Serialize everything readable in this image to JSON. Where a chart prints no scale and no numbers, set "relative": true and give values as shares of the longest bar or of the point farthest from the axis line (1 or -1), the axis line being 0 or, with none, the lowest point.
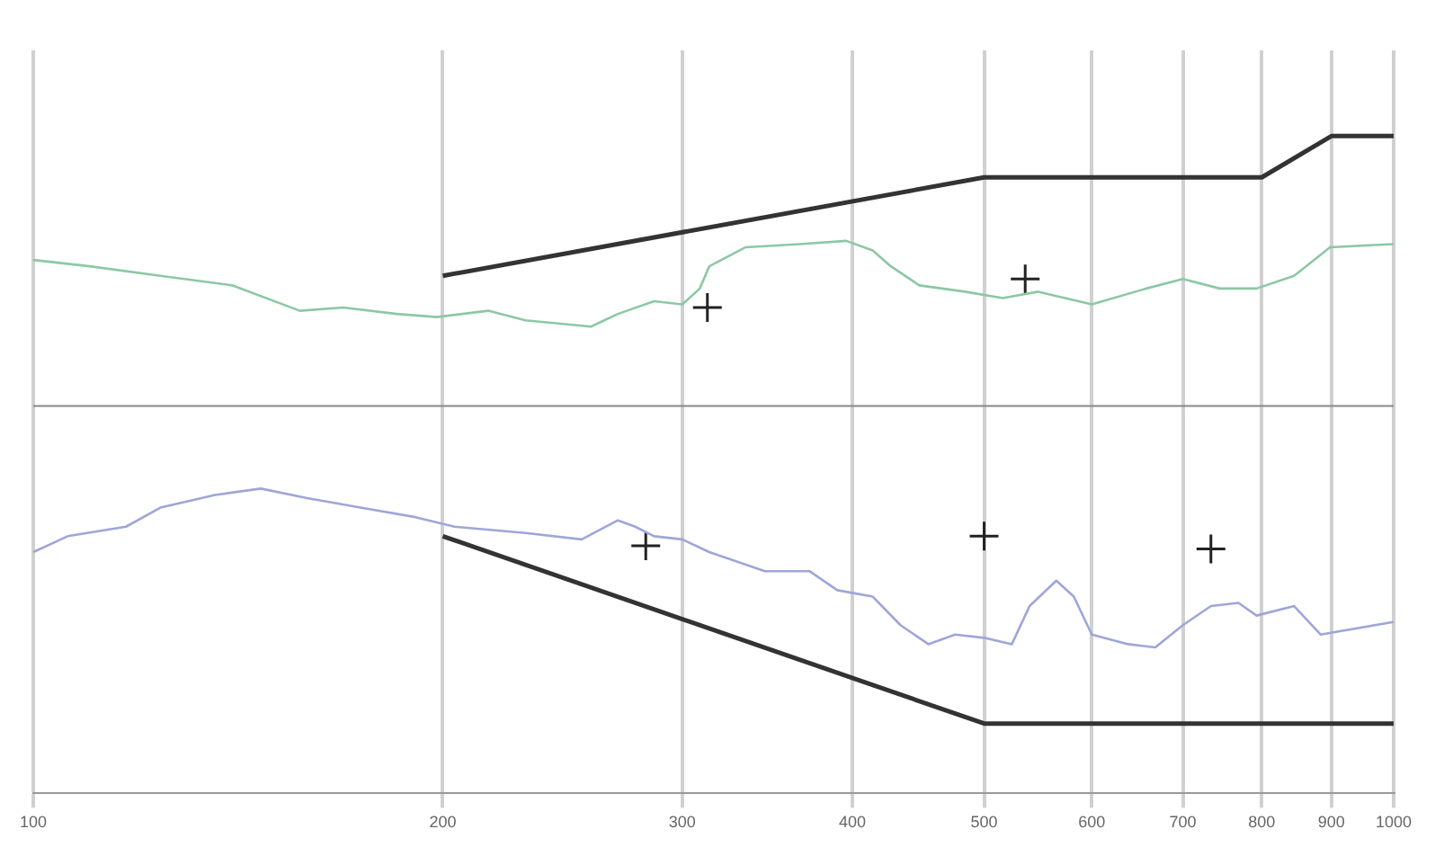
{
  "chart_data": {
    "type": "line",
    "relative": true,
    "log": "x",
    "xlim": [
      100,
      1000
    ],
    "xticks": [
      100,
      200,
      300,
      400,
      500,
      600,
      700,
      800,
      900,
      1000
    ],
    "grid": "x",
    "legend": false,
    "marker": "none",
    "line_style": "solid",
    "series": [
      {
        "color": "#8cc8a4",
        "x": [
          100,
          110,
          124,
          140,
          157,
          169,
          185,
          198,
          216,
          230,
          257,
          269,
          286,
          300,
          309,
          314,
          334,
          366,
          396,
          414,
          427,
          448,
          484,
          516,
          548,
          600,
          658,
          700,
          745,
          793,
          845,
          898,
          1000
        ],
        "values": [
          0.46,
          0.44,
          0.41,
          0.38,
          0.3,
          0.31,
          0.29,
          0.28,
          0.3,
          0.27,
          0.25,
          0.29,
          0.33,
          0.32,
          0.37,
          0.44,
          0.5,
          0.51,
          0.52,
          0.49,
          0.44,
          0.38,
          0.36,
          0.34,
          0.36,
          0.32,
          0.37,
          0.4,
          0.37,
          0.37,
          0.41,
          0.5,
          0.51
        ]
      },
      {
        "color": "#9ea6d8",
        "x": [
          100,
          106,
          117,
          124,
          136,
          147,
          159,
          174,
          191,
          204,
          230,
          253,
          269,
          277,
          286,
          300,
          314,
          345,
          372,
          390,
          414,
          434,
          455,
          476,
          500,
          524,
          540,
          565,
          582,
          600,
          638,
          668,
          700,
          734,
          769,
          793,
          845,
          884,
          911,
          1000
        ],
        "values": [
          -0.46,
          -0.41,
          -0.38,
          -0.32,
          -0.28,
          -0.26,
          -0.29,
          -0.32,
          -0.35,
          -0.38,
          -0.4,
          -0.42,
          -0.36,
          -0.38,
          -0.41,
          -0.42,
          -0.46,
          -0.52,
          -0.52,
          -0.58,
          -0.6,
          -0.69,
          -0.75,
          -0.72,
          -0.73,
          -0.75,
          -0.63,
          -0.55,
          -0.6,
          -0.72,
          -0.75,
          -0.76,
          -0.69,
          -0.63,
          -0.62,
          -0.66,
          -0.63,
          -0.72,
          -0.71,
          -0.68
        ]
      },
      {
        "color": "#333333",
        "x": [
          200,
          500,
          800,
          900,
          1000
        ],
        "values": [
          0.41,
          0.72,
          0.72,
          0.85,
          0.85
        ]
      },
      {
        "color": "#333333",
        "x": [
          200,
          500,
          1000
        ],
        "values": [
          -0.41,
          -1,
          -1
        ]
      },
      {
        "type": "scatter",
        "marker": "cross",
        "color": "#222222",
        "x": [
          282,
          313,
          500,
          536,
          734
        ],
        "values": [
          -0.44,
          0.31,
          -0.41,
          0.4,
          -0.45
        ]
      }
    ]
  }
}
